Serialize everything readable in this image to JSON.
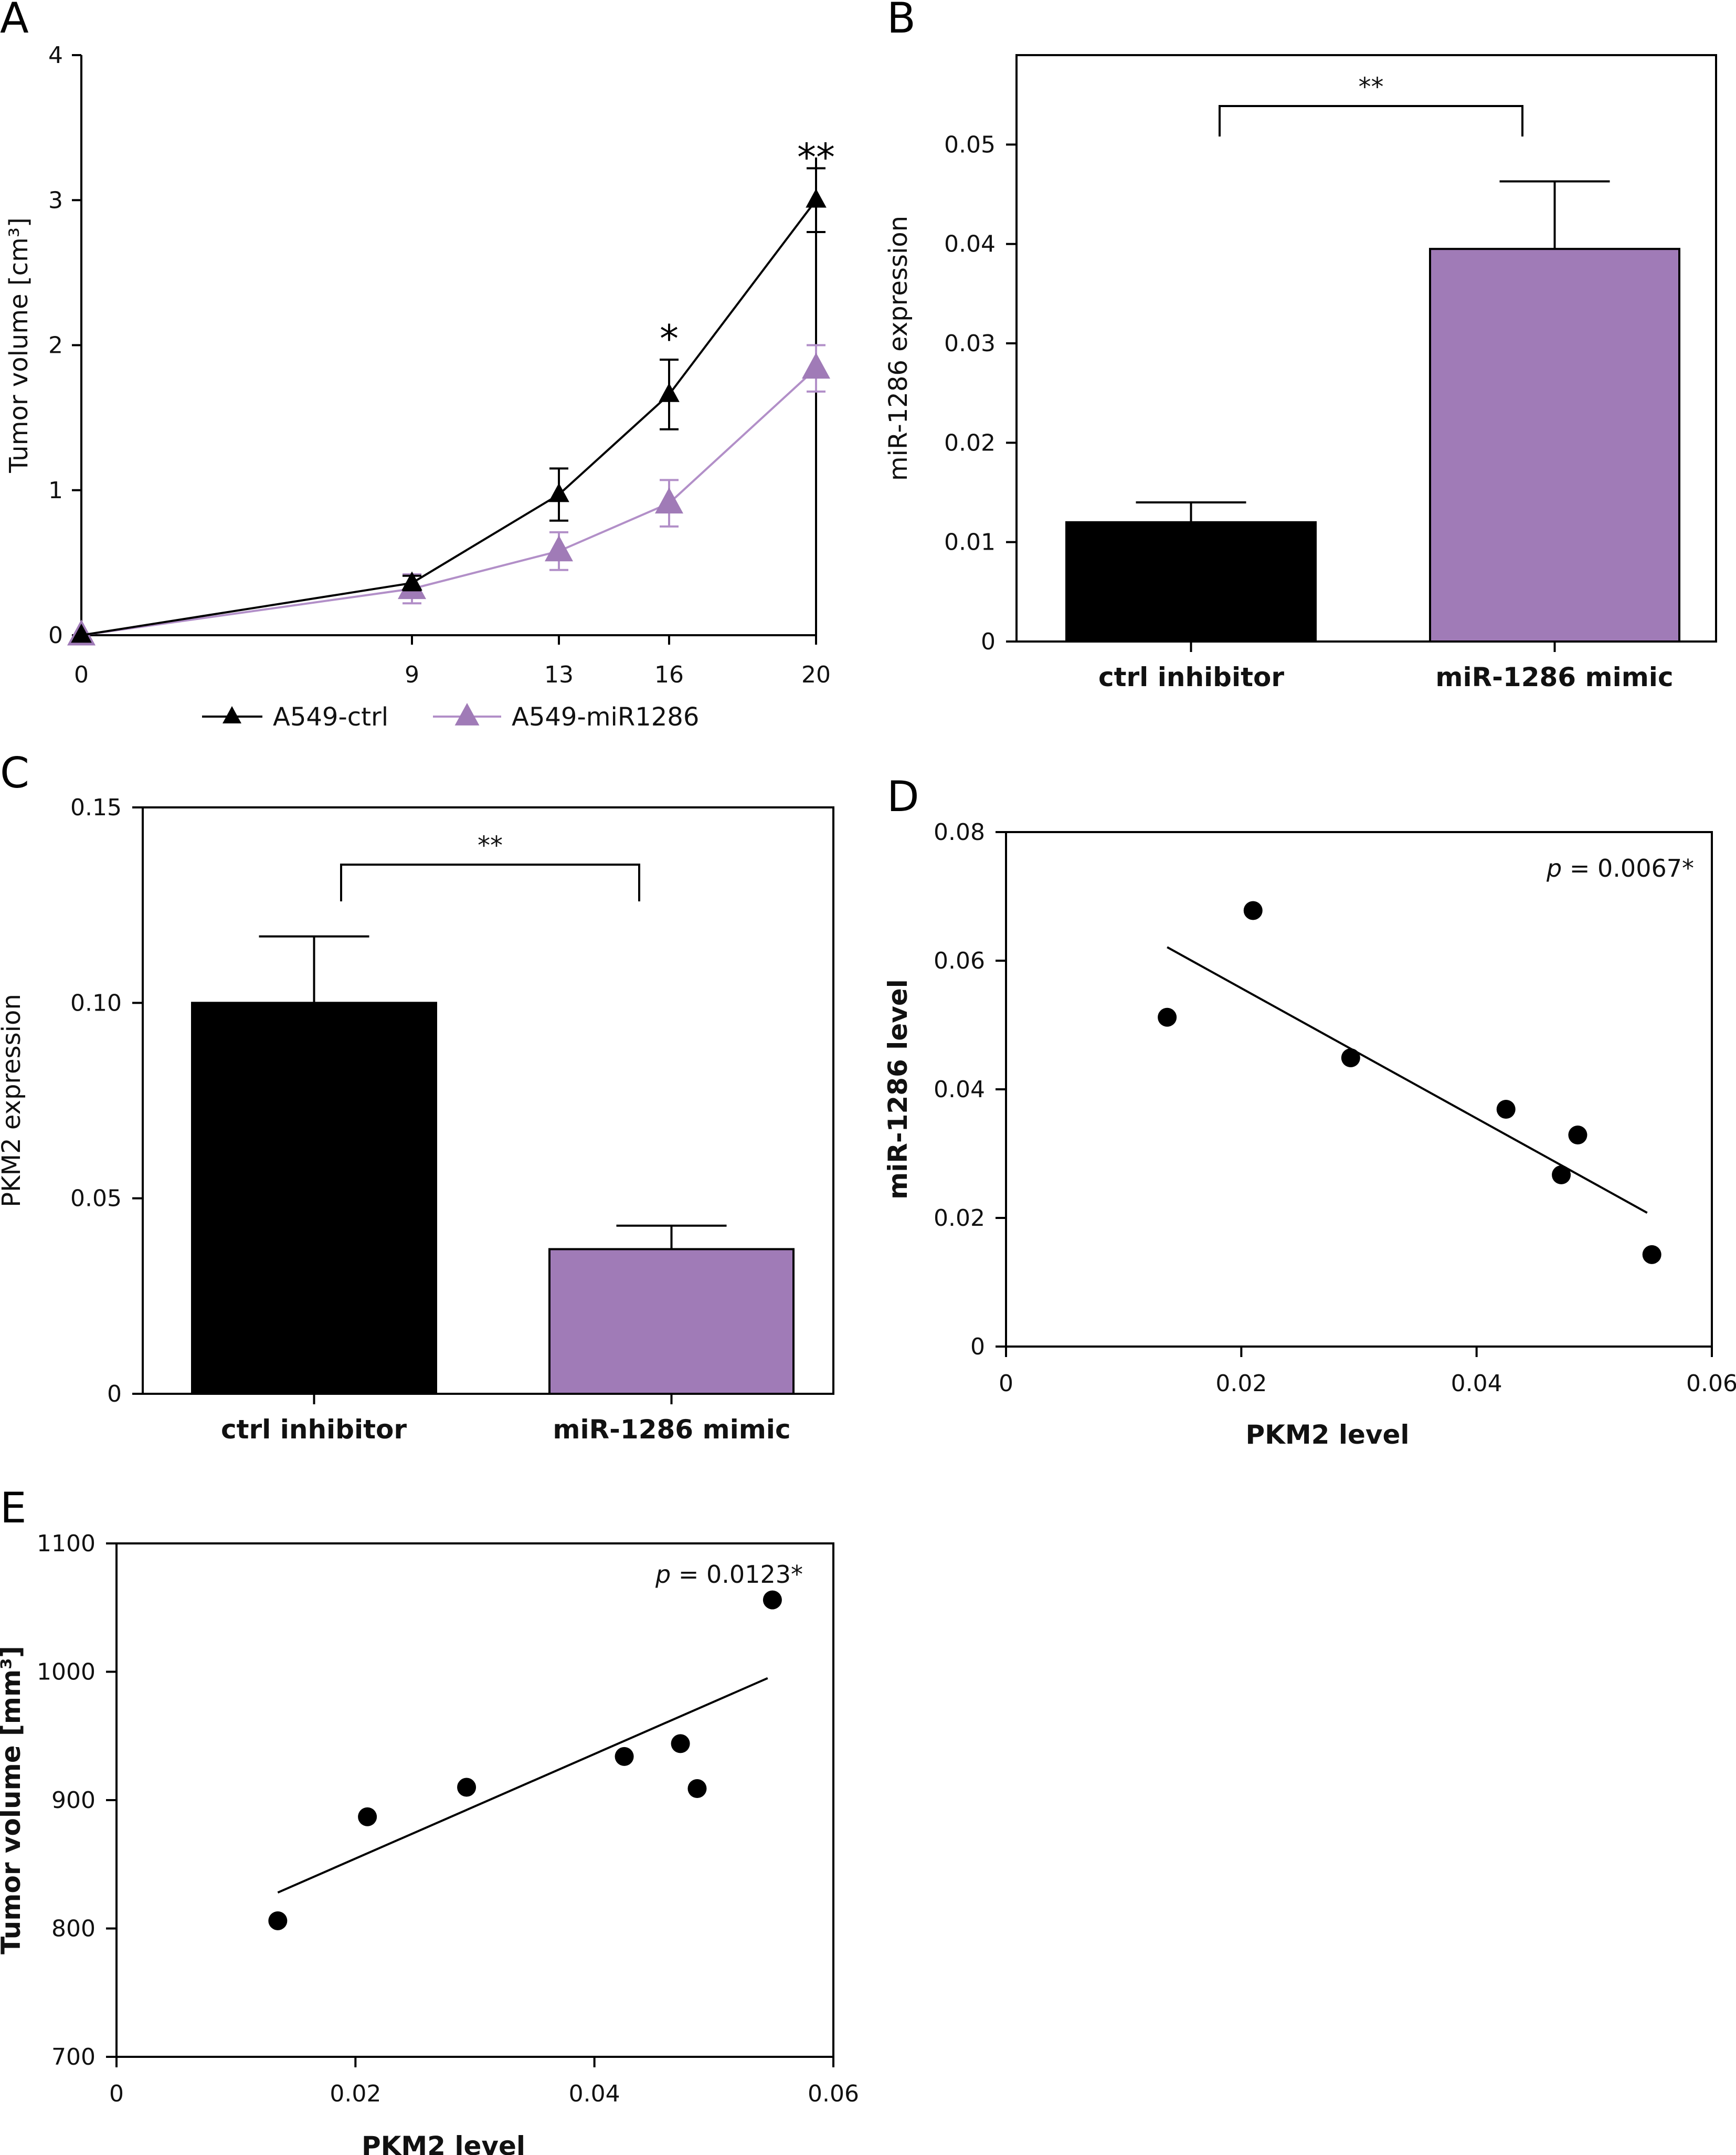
{
  "colors": {
    "ctrl": "#000000",
    "mir": "#a07bb7",
    "mir_line": "#b28fc8"
  },
  "chart_data": [
    {
      "panel": "A",
      "type": "line",
      "ylabel": "Tumor volume [cm³]",
      "xlabel": "",
      "x": [
        0,
        9,
        13,
        16,
        20
      ],
      "x_tick_labels": [
        "0",
        "9",
        "13",
        "16",
        "20"
      ],
      "ylim": [
        0,
        4
      ],
      "y_tick_labels": [
        "0",
        "1",
        "2",
        "3",
        "4"
      ],
      "series": [
        {
          "name": "A549-ctrl",
          "values": [
            0,
            0.36,
            0.97,
            1.66,
            3.0
          ],
          "errors": [
            0,
            0.05,
            0.18,
            0.24,
            0.22
          ]
        },
        {
          "name": "A549-miR1286",
          "values": [
            0,
            0.32,
            0.58,
            0.91,
            1.84
          ],
          "errors": [
            0,
            0.1,
            0.13,
            0.16,
            0.16
          ]
        }
      ],
      "annotations": [
        {
          "x": 16,
          "text": "*"
        },
        {
          "x": 20,
          "text": "**"
        }
      ]
    },
    {
      "panel": "B",
      "type": "bar",
      "ylabel": "miR-1286 expression",
      "categories": [
        "ctrl inhibitor",
        "miR-1286 mimic"
      ],
      "values": [
        0.012,
        0.0395
      ],
      "errors": [
        0.002,
        0.0068
      ],
      "ylim": [
        0,
        0.059
      ],
      "y_ticks": [
        0,
        0.01,
        0.02,
        0.03,
        0.04,
        0.05
      ],
      "y_tick_labels": [
        "0",
        "0.01",
        "0.02",
        "0.03",
        "0.04",
        "0.05"
      ],
      "significance": "**"
    },
    {
      "panel": "C",
      "type": "bar",
      "ylabel": "PKM2 expression",
      "categories": [
        "ctrl inhibitor",
        "miR-1286 mimic"
      ],
      "values": [
        0.1,
        0.037
      ],
      "errors": [
        0.017,
        0.006
      ],
      "ylim": [
        0,
        0.15
      ],
      "y_ticks": [
        0,
        0.05,
        0.1,
        0.15
      ],
      "y_tick_labels": [
        "0",
        "0.05",
        "0.10",
        "0.15"
      ],
      "significance": "**"
    },
    {
      "panel": "D",
      "type": "scatter",
      "xlabel": "PKM2 level",
      "ylabel": "miR-1286 level",
      "points": [
        [
          0.0137,
          0.0512
        ],
        [
          0.021,
          0.0678
        ],
        [
          0.0293,
          0.0449
        ],
        [
          0.0425,
          0.0369
        ],
        [
          0.0472,
          0.0267
        ],
        [
          0.0486,
          0.0329
        ],
        [
          0.0549,
          0.0143
        ]
      ],
      "fit_line": [
        [
          0.0137,
          0.0621
        ],
        [
          0.0545,
          0.0208
        ]
      ],
      "xlim": [
        0,
        0.06
      ],
      "ylim": [
        0,
        0.08
      ],
      "x_ticks": [
        0,
        0.02,
        0.04,
        0.06
      ],
      "x_tick_labels": [
        "0",
        "0.02",
        "0.04",
        "0.06"
      ],
      "y_ticks": [
        0,
        0.02,
        0.04,
        0.06,
        0.08
      ],
      "y_tick_labels": [
        "0",
        "0.02",
        "0.04",
        "0.06",
        "0.08"
      ],
      "annotation_p": "p",
      "annotation_rest": " = 0.0067*"
    },
    {
      "panel": "E",
      "type": "scatter",
      "xlabel": "PKM2 level",
      "ylabel": "Tumor volume [mm³]",
      "points": [
        [
          0.0135,
          806
        ],
        [
          0.021,
          887
        ],
        [
          0.0293,
          910
        ],
        [
          0.0425,
          934
        ],
        [
          0.0472,
          944
        ],
        [
          0.0486,
          909
        ],
        [
          0.0549,
          1056
        ]
      ],
      "fit_line": [
        [
          0.0135,
          828
        ],
        [
          0.0545,
          995
        ]
      ],
      "xlim": [
        0,
        0.06
      ],
      "ylim": [
        700,
        1100
      ],
      "x_ticks": [
        0,
        0.02,
        0.04,
        0.06
      ],
      "x_tick_labels": [
        "0",
        "0.02",
        "0.04",
        "0.06"
      ],
      "y_ticks": [
        700,
        800,
        900,
        1000,
        1100
      ],
      "y_tick_labels": [
        "700",
        "800",
        "900",
        "1000",
        "1100"
      ],
      "annotation_p": "p",
      "annotation_rest": " = 0.0123*"
    }
  ]
}
